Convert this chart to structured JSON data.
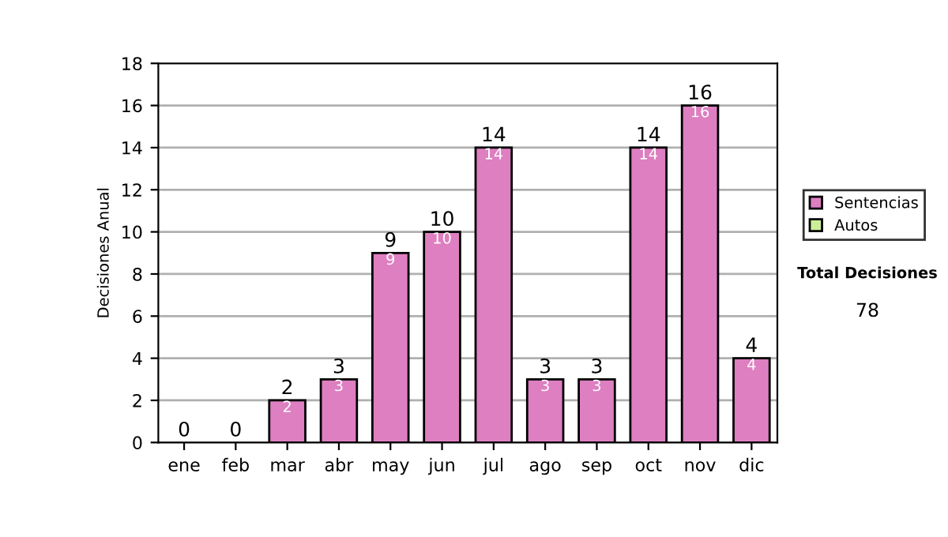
{
  "chart_data": {
    "type": "bar",
    "stacked": true,
    "ylabel": "Decisiones Anual",
    "categories": [
      "ene",
      "feb",
      "mar",
      "abr",
      "may",
      "jun",
      "jul",
      "ago",
      "sep",
      "oct",
      "nov",
      "dic"
    ],
    "series": [
      {
        "name": "Sentencias",
        "color": "#dd7fc0",
        "values": [
          0,
          0,
          2,
          3,
          9,
          10,
          14,
          3,
          3,
          14,
          16,
          4
        ],
        "value_labels": [
          null,
          null,
          "2",
          "3",
          "9",
          "10",
          "14",
          "3",
          "3",
          "14",
          "16",
          "4"
        ]
      },
      {
        "name": "Autos",
        "color": "#ccee99",
        "values": [
          0,
          0,
          0,
          0,
          0,
          0,
          0,
          0,
          0,
          0,
          0,
          0
        ]
      }
    ],
    "totals": [
      "0",
      "0",
      "2",
      "3",
      "9",
      "10",
      "14",
      "3",
      "3",
      "14",
      "16",
      "4"
    ],
    "ylim": [
      0,
      18
    ],
    "yticks": [
      0,
      2,
      4,
      6,
      8,
      10,
      12,
      14,
      16,
      18
    ],
    "grid": "y",
    "legend": "right",
    "annotations": [
      "Total Decisiones",
      "78"
    ]
  }
}
